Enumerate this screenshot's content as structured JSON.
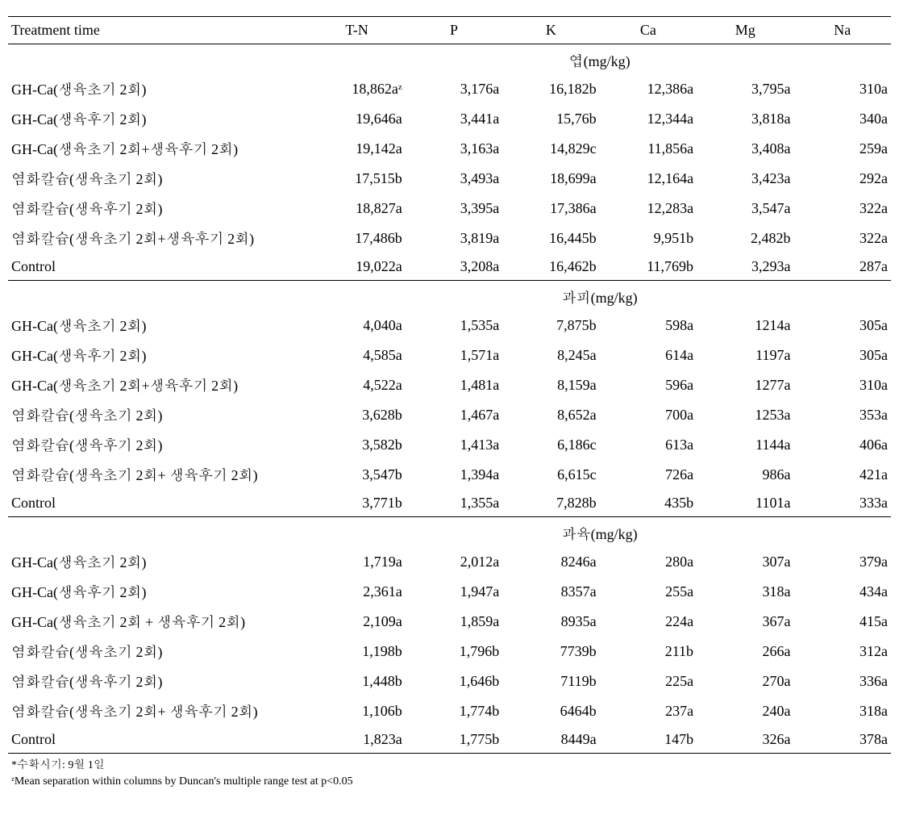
{
  "columns": [
    "Treatment time",
    "T-N",
    "P",
    "K",
    "Ca",
    "Mg",
    "Na"
  ],
  "sections": [
    {
      "label": "엽(mg/kg)",
      "rows": [
        {
          "t": "GH-Ca(생육초기 2회)",
          "v": [
            "18,862aᶻ",
            "3,176a",
            "16,182b",
            "12,386a",
            "3,795a",
            "310a"
          ]
        },
        {
          "t": "GH-Ca(생육후기 2회)",
          "v": [
            "19,646a",
            "3,441a",
            "15,76b",
            "12,344a",
            "3,818a",
            "340a"
          ]
        },
        {
          "t": "GH-Ca(생육초기 2회+생육후기 2회)",
          "v": [
            "19,142a",
            "3,163a",
            "14,829c",
            "11,856a",
            "3,408a",
            "259a"
          ]
        },
        {
          "t": "염화칼슘(생육초기 2회)",
          "v": [
            "17,515b",
            "3,493a",
            "18,699a",
            "12,164a",
            "3,423a",
            "292a"
          ]
        },
        {
          "t": "염화칼슘(생육후기 2회)",
          "v": [
            "18,827a",
            "3,395a",
            "17,386a",
            "12,283a",
            "3,547a",
            "322a"
          ]
        },
        {
          "t": "염화칼슘(생육초기 2회+생육후기 2회)",
          "v": [
            "17,486b",
            "3,819a",
            "16,445b",
            "9,951b",
            "2,482b",
            "322a"
          ]
        },
        {
          "t": "Control",
          "v": [
            "19,022a",
            "3,208a",
            "16,462b",
            "11,769b",
            "3,293a",
            "287a"
          ]
        }
      ]
    },
    {
      "label": "과피(mg/kg)",
      "rows": [
        {
          "t": "GH-Ca(생육초기 2회)",
          "v": [
            "4,040a",
            "1,535a",
            "7,875b",
            "598a",
            "1214a",
            "305a"
          ]
        },
        {
          "t": "GH-Ca(생육후기 2회)",
          "v": [
            "4,585a",
            "1,571a",
            "8,245a",
            "614a",
            "1197a",
            "305a"
          ]
        },
        {
          "t": "GH-Ca(생육초기 2회+생육후기 2회)",
          "v": [
            "4,522a",
            "1,481a",
            "8,159a",
            "596a",
            "1277a",
            "310a"
          ]
        },
        {
          "t": "염화칼슘(생육초기 2회)",
          "v": [
            "3,628b",
            "1,467a",
            "8,652a",
            "700a",
            "1253a",
            "353a"
          ]
        },
        {
          "t": "염화칼슘(생육후기 2회)",
          "v": [
            "3,582b",
            "1,413a",
            "6,186c",
            "613a",
            "1144a",
            "406a"
          ]
        },
        {
          "t": "염화칼슘(생육초기 2회+ 생육후기 2회)",
          "v": [
            "3,547b",
            "1,394a",
            "6,615c",
            "726a",
            "986a",
            "421a"
          ]
        },
        {
          "t": "Control",
          "v": [
            "3,771b",
            "1,355a",
            "7,828b",
            "435b",
            "1101a",
            "333a"
          ]
        }
      ]
    },
    {
      "label": "과육(mg/kg)",
      "rows": [
        {
          "t": "GH-Ca(생육초기 2회)",
          "v": [
            "1,719a",
            "2,012a",
            "8246a",
            "280a",
            "307a",
            "379a"
          ]
        },
        {
          "t": "GH-Ca(생육후기 2회)",
          "v": [
            "2,361a",
            "1,947a",
            "8357a",
            "255a",
            "318a",
            "434a"
          ]
        },
        {
          "t": "GH-Ca(생육초기 2회 + 생육후기 2회)",
          "v": [
            "2,109a",
            "1,859a",
            "8935a",
            "224a",
            "367a",
            "415a"
          ]
        },
        {
          "t": "염화칼슘(생육초기 2회)",
          "v": [
            "1,198b",
            "1,796b",
            "7739b",
            "211b",
            "266a",
            "312a"
          ]
        },
        {
          "t": "염화칼슘(생육후기 2회)",
          "v": [
            "1,448b",
            "1,646b",
            "7119b",
            "225a",
            "270a",
            "336a"
          ]
        },
        {
          "t": "염화칼슘(생육초기 2회+ 생육후기 2회)",
          "v": [
            "1,106b",
            "1,774b",
            "6464b",
            "237a",
            "240a",
            "318a"
          ]
        },
        {
          "t": "Control",
          "v": [
            "1,823a",
            "1,775b",
            "8449a",
            "147b",
            "326a",
            "378a"
          ]
        }
      ]
    }
  ],
  "footnotes": [
    "*수확시기: 9월 1일",
    "ᶻMean separation within columns by Duncan's multiple range test at p<0.05"
  ],
  "style": {
    "font_family": "Times New Roman, Batang, serif",
    "font_size_body": 18,
    "font_size_footnote": 14,
    "text_color": "#000000",
    "background_color": "#ffffff",
    "border_color": "#000000",
    "top_border_width": 1.5,
    "section_border_width": 1,
    "col_widths_pct": [
      34,
      11,
      11,
      11,
      11,
      11,
      11
    ]
  }
}
